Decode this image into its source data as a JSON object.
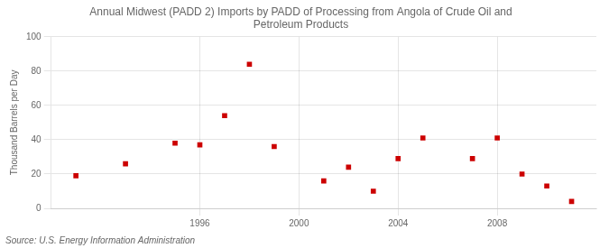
{
  "chart_data": {
    "type": "scatter",
    "title": "Annual Midwest (PADD 2) Imports by PADD of Processing from Angola of Crude Oil and\nPetroleum Products",
    "ylabel": "Thousand Barrels per Day",
    "annotations": [
      "Source: U.S. Energy Information Administration"
    ],
    "x": [
      1991,
      1993,
      1995,
      1996,
      1997,
      1998,
      1999,
      2001,
      2002,
      2003,
      2004,
      2005,
      2007,
      2008,
      2009,
      2010,
      2011
    ],
    "values": [
      19,
      26,
      38,
      37,
      54,
      84,
      36,
      16,
      24,
      10,
      29,
      41,
      29,
      41,
      20,
      13,
      4
    ],
    "color": "#cc0000",
    "marker": "square",
    "xlim": [
      1990,
      2012
    ],
    "ylim": [
      0,
      100
    ],
    "xticks": [
      1996,
      2000,
      2004,
      2008
    ],
    "yticks": [
      0,
      20,
      40,
      60,
      80,
      100
    ],
    "grid": true
  }
}
